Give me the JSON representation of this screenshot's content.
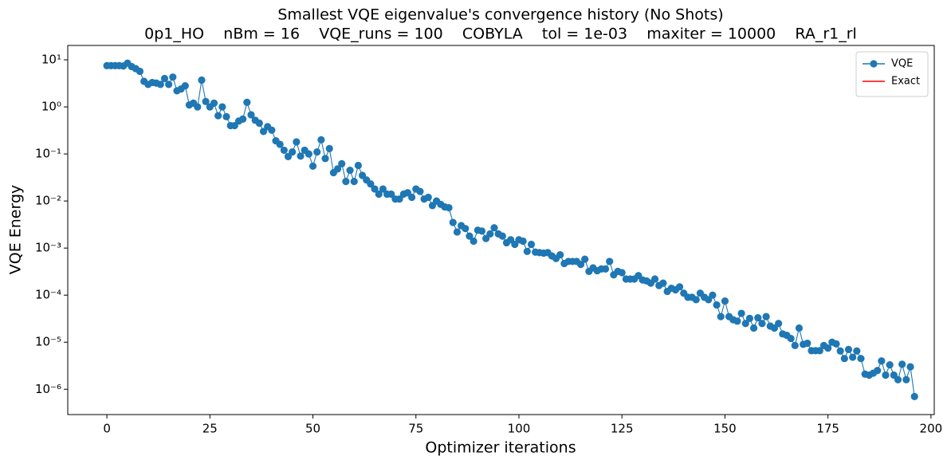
{
  "chart_data": {
    "type": "line",
    "title": "Smallest VQE eigenvalue's convergence history (No Shots)",
    "subtitle": "0p1_HO    nBm = 16    VQE_runs = 100    COBYLA    tol = 1e-03    maxiter = 10000    RA_r1_rl",
    "x_label": "Optimizer iterations",
    "y_label": "VQE Energy",
    "yscale": "log",
    "legend": "upper right",
    "xlim": [
      -9.5,
      200.8
    ],
    "xticks": [
      0,
      25,
      50,
      75,
      100,
      125,
      150,
      175,
      200
    ],
    "ylim": [
      2.9e-07,
      20.2
    ],
    "yticks": [
      {
        "value": 10,
        "label": "10¹"
      },
      {
        "value": 1,
        "label": "10⁰"
      },
      {
        "value": 0.1,
        "label": "10⁻¹"
      },
      {
        "value": 0.01,
        "label": "10⁻²"
      },
      {
        "value": 0.001,
        "label": "10⁻³"
      },
      {
        "value": 0.0001,
        "label": "10⁻⁴"
      },
      {
        "value": 1e-05,
        "label": "10⁻⁵"
      },
      {
        "value": 1e-06,
        "label": "10⁻⁶"
      }
    ],
    "x": [
      0,
      1,
      2,
      3,
      4,
      5,
      6,
      7,
      8,
      9,
      10,
      11,
      12,
      13,
      14,
      15,
      16,
      17,
      18,
      19,
      20,
      21,
      22,
      23,
      24,
      25,
      26,
      27,
      28,
      29,
      30,
      31,
      32,
      33,
      34,
      35,
      36,
      37,
      38,
      39,
      40,
      41,
      42,
      43,
      44,
      45,
      46,
      47,
      48,
      49,
      50,
      51,
      52,
      53,
      54,
      55,
      56,
      57,
      58,
      59,
      60,
      61,
      62,
      63,
      64,
      65,
      66,
      67,
      68,
      69,
      70,
      71,
      72,
      73,
      74,
      75,
      76,
      77,
      78,
      79,
      80,
      81,
      82,
      83,
      84,
      85,
      86,
      87,
      88,
      89,
      90,
      91,
      92,
      93,
      94,
      95,
      96,
      97,
      98,
      99,
      100,
      101,
      102,
      103,
      104,
      105,
      106,
      107,
      108,
      109,
      110,
      111,
      112,
      113,
      114,
      115,
      116,
      117,
      118,
      119,
      120,
      121,
      122,
      123,
      124,
      125,
      126,
      127,
      128,
      129,
      130,
      131,
      132,
      133,
      134,
      135,
      136,
      137,
      138,
      139,
      140,
      141,
      142,
      143,
      144,
      145,
      146,
      147,
      148,
      149,
      150,
      151,
      152,
      153,
      154,
      155,
      156,
      157,
      158,
      159,
      160,
      161,
      162,
      163,
      164,
      165,
      166,
      167,
      168,
      169,
      170,
      171,
      172,
      173,
      174,
      175,
      176,
      177,
      178,
      179,
      180,
      181,
      182,
      183,
      184,
      185,
      186,
      187,
      188,
      189,
      190,
      191,
      192,
      193,
      194,
      195,
      196
    ],
    "series": [
      {
        "name": "VQE",
        "color": "#1f77b4",
        "values": [
          7.5,
          7.5,
          7.5,
          7.5,
          7.4,
          8.5,
          7.2,
          6.5,
          5.7,
          3.5,
          3.0,
          3.3,
          3.2,
          3.0,
          4.0,
          3.0,
          4.3,
          2.2,
          2.4,
          2.8,
          1.1,
          1.2,
          1.0,
          3.7,
          1.3,
          1.0,
          1.2,
          0.65,
          1.0,
          0.62,
          0.4,
          0.4,
          0.5,
          0.55,
          1.25,
          0.68,
          0.52,
          0.45,
          0.3,
          0.38,
          0.32,
          0.19,
          0.16,
          0.12,
          0.088,
          0.11,
          0.18,
          0.09,
          0.12,
          0.1,
          0.055,
          0.11,
          0.2,
          0.08,
          0.13,
          0.04,
          0.048,
          0.062,
          0.026,
          0.045,
          0.026,
          0.057,
          0.035,
          0.028,
          0.023,
          0.018,
          0.014,
          0.018,
          0.014,
          0.014,
          0.011,
          0.011,
          0.014,
          0.015,
          0.012,
          0.018,
          0.016,
          0.011,
          0.012,
          0.008,
          0.01,
          0.0085,
          0.0075,
          0.0072,
          0.0035,
          0.0022,
          0.003,
          0.0026,
          0.0018,
          0.0014,
          0.0024,
          0.0023,
          0.0016,
          0.002,
          0.0027,
          0.002,
          0.0018,
          0.0013,
          0.0015,
          0.0012,
          0.0015,
          0.0014,
          0.00085,
          0.0012,
          0.00082,
          0.0008,
          0.00078,
          0.0008,
          0.00068,
          0.0006,
          0.00072,
          0.00047,
          0.00052,
          0.00052,
          0.00052,
          0.00045,
          0.00058,
          0.00032,
          0.00038,
          0.00033,
          0.00036,
          0.00036,
          0.00052,
          0.00027,
          0.00032,
          0.0003,
          0.00022,
          0.00022,
          0.00022,
          0.00026,
          0.00021,
          0.0002,
          0.00018,
          0.00022,
          0.00016,
          0.00018,
          0.00012,
          0.00014,
          0.00013,
          0.00015,
          0.00011,
          9e-05,
          9e-05,
          8e-05,
          0.00011,
          9e-05,
          8e-05,
          0.0001,
          6.2e-05,
          3.5e-05,
          7.5e-05,
          3.5e-05,
          3e-05,
          2.8e-05,
          4.1e-05,
          2.5e-05,
          3.2e-05,
          2e-05,
          3.3e-05,
          2.5e-05,
          3.5e-05,
          2.2e-05,
          2e-05,
          2.5e-05,
          1.5e-05,
          1.4e-05,
          1.2e-05,
          8.5e-06,
          2e-05,
          9e-06,
          9.5e-06,
          6.6e-06,
          6.6e-06,
          6.6e-06,
          8.5e-06,
          7.5e-06,
          1e-05,
          9.2e-06,
          6.5e-06,
          4.5e-06,
          7e-06,
          4.8e-06,
          6.5e-06,
          4.5e-06,
          2.1e-06,
          2e-06,
          2.2e-06,
          2.5e-06,
          4e-06,
          2e-06,
          3.3e-06,
          2e-06,
          1.6e-06,
          3.4e-06,
          1.6e-06,
          3e-06,
          7e-07
        ]
      },
      {
        "name": "Exact",
        "color": "#ff0000"
      }
    ]
  }
}
